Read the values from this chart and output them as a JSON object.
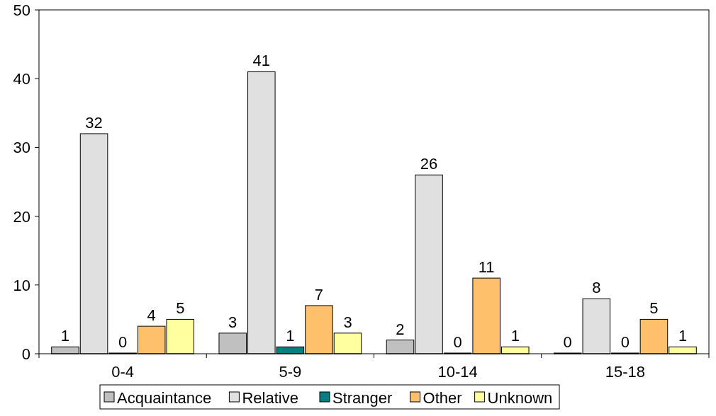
{
  "chart_data": {
    "type": "bar",
    "categories": [
      "0-4",
      "5-9",
      "10-14",
      "15-18"
    ],
    "series": [
      {
        "name": "Acquaintance",
        "color": "#c0c0c0",
        "values": [
          1,
          3,
          2,
          0
        ]
      },
      {
        "name": "Relative",
        "color": "#e0e0e0",
        "values": [
          32,
          41,
          26,
          8
        ]
      },
      {
        "name": "Stranger",
        "color": "#008080",
        "values": [
          0,
          1,
          0,
          0
        ]
      },
      {
        "name": "Other",
        "color": "#ffc06c",
        "values": [
          4,
          7,
          11,
          5
        ]
      },
      {
        "name": "Unknown",
        "color": "#ffffa0",
        "values": [
          5,
          3,
          1,
          1
        ]
      }
    ],
    "ylim": [
      0,
      50
    ],
    "yticks": [
      0,
      10,
      20,
      30,
      40,
      50
    ],
    "grid": false,
    "legend": "bottom",
    "data_labels": true
  }
}
